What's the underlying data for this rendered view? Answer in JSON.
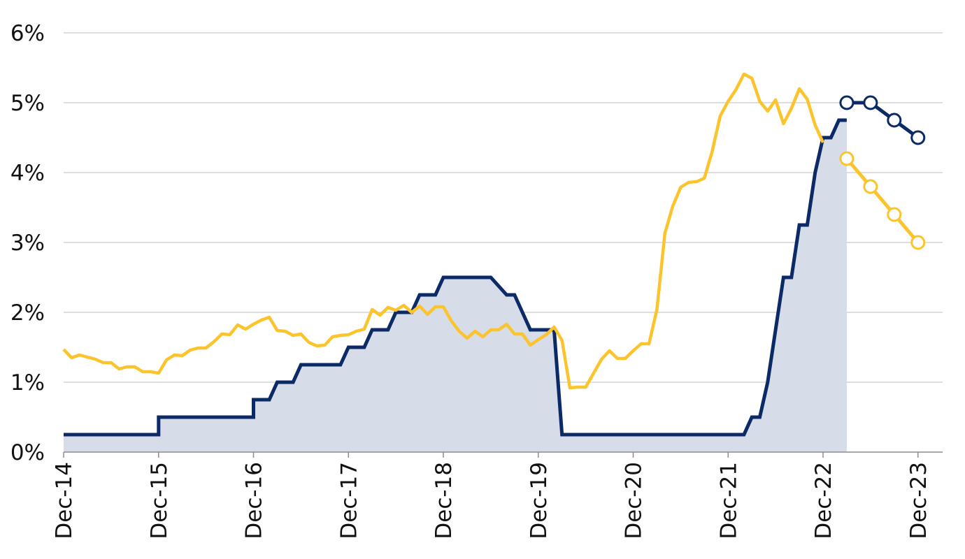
{
  "chart_data": {
    "type": "line",
    "title": "",
    "xlabel": "",
    "ylabel": "",
    "ylim": [
      0,
      6
    ],
    "y_ticks": [
      "0%",
      "1%",
      "2%",
      "3%",
      "4%",
      "5%",
      "6%"
    ],
    "x_ticks": [
      "Dec-14",
      "Dec-15",
      "Dec-16",
      "Dec-17",
      "Dec-18",
      "Dec-19",
      "Dec-20",
      "Dec-21",
      "Dec-22",
      "Dec-23"
    ],
    "grid": true,
    "legend": "none",
    "colors": {
      "policy_rate": "#0b2a66",
      "area_fill": "#d6dce8",
      "inflation": "#fcc42c"
    },
    "series": [
      {
        "style": "step-area",
        "color": "#0b2a66",
        "points": [
          [
            "2014-12",
            0.25
          ],
          [
            "2015-12",
            0.25
          ],
          [
            "2015-12",
            0.5
          ],
          [
            "2016-12",
            0.5
          ],
          [
            "2016-12",
            0.75
          ],
          [
            "2017-02",
            0.75
          ],
          [
            "2017-03",
            1.0
          ],
          [
            "2017-05",
            1.0
          ],
          [
            "2017-06",
            1.25
          ],
          [
            "2017-11",
            1.25
          ],
          [
            "2017-12",
            1.5
          ],
          [
            "2018-02",
            1.5
          ],
          [
            "2018-03",
            1.75
          ],
          [
            "2018-05",
            1.75
          ],
          [
            "2018-06",
            2.0
          ],
          [
            "2018-08",
            2.0
          ],
          [
            "2018-09",
            2.25
          ],
          [
            "2018-11",
            2.25
          ],
          [
            "2018-12",
            2.5
          ],
          [
            "2019-06",
            2.5
          ],
          [
            "2019-08",
            2.25
          ],
          [
            "2019-09",
            2.25
          ],
          [
            "2019-10",
            2.0
          ],
          [
            "2019-11",
            1.75
          ],
          [
            "2020-02",
            1.75
          ],
          [
            "2020-03",
            0.25
          ],
          [
            "2022-02",
            0.25
          ],
          [
            "2022-03",
            0.5
          ],
          [
            "2022-04",
            0.5
          ],
          [
            "2022-05",
            1.0
          ],
          [
            "2022-06",
            1.75
          ],
          [
            "2022-07",
            2.5
          ],
          [
            "2022-08",
            2.5
          ],
          [
            "2022-09",
            3.25
          ],
          [
            "2022-10",
            3.25
          ],
          [
            "2022-11",
            4.0
          ],
          [
            "2022-12",
            4.5
          ],
          [
            "2023-01",
            4.5
          ],
          [
            "2023-02",
            4.75
          ],
          [
            "2023-03",
            4.75
          ]
        ]
      },
      {
        "style": "line",
        "color": "#fcc42c",
        "points": [
          [
            "2014-12",
            1.47
          ],
          [
            "2015-01",
            1.35
          ],
          [
            "2015-02",
            1.39
          ],
          [
            "2015-03",
            1.36
          ],
          [
            "2015-04",
            1.33
          ],
          [
            "2015-05",
            1.28
          ],
          [
            "2015-06",
            1.28
          ],
          [
            "2015-07",
            1.19
          ],
          [
            "2015-08",
            1.22
          ],
          [
            "2015-09",
            1.22
          ],
          [
            "2015-10",
            1.15
          ],
          [
            "2015-11",
            1.15
          ],
          [
            "2015-12",
            1.13
          ],
          [
            "2016-01",
            1.32
          ],
          [
            "2016-02",
            1.39
          ],
          [
            "2016-03",
            1.38
          ],
          [
            "2016-04",
            1.46
          ],
          [
            "2016-05",
            1.49
          ],
          [
            "2016-06",
            1.49
          ],
          [
            "2016-07",
            1.58
          ],
          [
            "2016-08",
            1.69
          ],
          [
            "2016-09",
            1.68
          ],
          [
            "2016-10",
            1.82
          ],
          [
            "2016-11",
            1.76
          ],
          [
            "2016-12",
            1.83
          ],
          [
            "2017-01",
            1.89
          ],
          [
            "2017-02",
            1.93
          ],
          [
            "2017-03",
            1.74
          ],
          [
            "2017-04",
            1.73
          ],
          [
            "2017-05",
            1.67
          ],
          [
            "2017-06",
            1.69
          ],
          [
            "2017-07",
            1.57
          ],
          [
            "2017-08",
            1.52
          ],
          [
            "2017-09",
            1.53
          ],
          [
            "2017-10",
            1.65
          ],
          [
            "2017-11",
            1.67
          ],
          [
            "2017-12",
            1.68
          ],
          [
            "2018-01",
            1.73
          ],
          [
            "2018-02",
            1.76
          ],
          [
            "2018-03",
            2.04
          ],
          [
            "2018-04",
            1.96
          ],
          [
            "2018-05",
            2.07
          ],
          [
            "2018-06",
            2.03
          ],
          [
            "2018-07",
            2.1
          ],
          [
            "2018-08",
            2.0
          ],
          [
            "2018-09",
            2.09
          ],
          [
            "2018-10",
            1.97
          ],
          [
            "2018-11",
            2.08
          ],
          [
            "2018-12",
            2.08
          ],
          [
            "2019-01",
            1.88
          ],
          [
            "2019-02",
            1.73
          ],
          [
            "2019-03",
            1.63
          ],
          [
            "2019-04",
            1.73
          ],
          [
            "2019-05",
            1.65
          ],
          [
            "2019-06",
            1.75
          ],
          [
            "2019-07",
            1.75
          ],
          [
            "2019-08",
            1.83
          ],
          [
            "2019-09",
            1.69
          ],
          [
            "2019-10",
            1.69
          ],
          [
            "2019-11",
            1.53
          ],
          [
            "2019-12",
            1.61
          ],
          [
            "2020-01",
            1.68
          ],
          [
            "2020-02",
            1.79
          ],
          [
            "2020-03",
            1.6
          ],
          [
            "2020-04",
            0.92
          ],
          [
            "2020-05",
            0.93
          ],
          [
            "2020-06",
            0.93
          ],
          [
            "2020-07",
            1.13
          ],
          [
            "2020-08",
            1.33
          ],
          [
            "2020-09",
            1.45
          ],
          [
            "2020-10",
            1.34
          ],
          [
            "2020-11",
            1.34
          ],
          [
            "2020-12",
            1.45
          ],
          [
            "2021-01",
            1.55
          ],
          [
            "2021-02",
            1.55
          ],
          [
            "2021-03",
            2.04
          ],
          [
            "2021-04",
            3.13
          ],
          [
            "2021-05",
            3.52
          ],
          [
            "2021-06",
            3.79
          ],
          [
            "2021-07",
            3.86
          ],
          [
            "2021-08",
            3.87
          ],
          [
            "2021-09",
            3.92
          ],
          [
            "2021-10",
            4.31
          ],
          [
            "2021-11",
            4.81
          ],
          [
            "2021-12",
            5.02
          ],
          [
            "2022-01",
            5.19
          ],
          [
            "2022-02",
            5.41
          ],
          [
            "2022-03",
            5.35
          ],
          [
            "2022-04",
            5.02
          ],
          [
            "2022-05",
            4.88
          ],
          [
            "2022-06",
            5.04
          ],
          [
            "2022-07",
            4.7
          ],
          [
            "2022-08",
            4.92
          ],
          [
            "2022-09",
            5.2
          ],
          [
            "2022-10",
            5.05
          ],
          [
            "2022-11",
            4.68
          ],
          [
            "2022-12",
            4.43
          ]
        ]
      },
      {
        "style": "markers-line",
        "color": "#0b2a66",
        "points": [
          [
            "2023-03",
            5.0
          ],
          [
            "2023-06",
            5.0
          ],
          [
            "2023-09",
            4.75
          ],
          [
            "2023-12",
            4.5
          ]
        ]
      },
      {
        "style": "markers-line",
        "color": "#fcc42c",
        "points": [
          [
            "2023-03",
            4.2
          ],
          [
            "2023-06",
            3.8
          ],
          [
            "2023-09",
            3.4
          ],
          [
            "2023-12",
            3.0
          ]
        ]
      }
    ]
  }
}
